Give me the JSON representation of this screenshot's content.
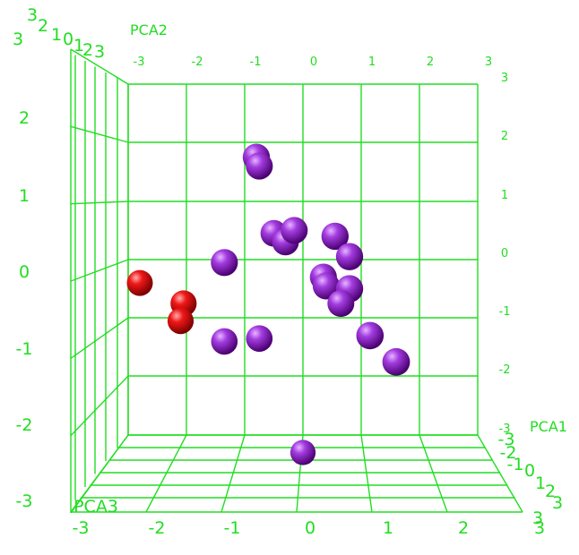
{
  "chart_data": {
    "type": "scatter",
    "title": "",
    "dimensions": 3,
    "axes": {
      "pca1": {
        "label": "PCA1",
        "range": [
          -3,
          3
        ],
        "ticks": [
          "-3",
          "-2",
          "-1",
          "0",
          "1",
          "2",
          "3"
        ]
      },
      "pca2": {
        "label": "PCA2",
        "range": [
          -3,
          3
        ],
        "ticks": [
          "-3",
          "-2",
          "-1",
          "0",
          "1",
          "2",
          "3"
        ]
      },
      "pca3": {
        "label": "PCA3",
        "range": [
          -3,
          3
        ],
        "ticks": [
          "-3",
          "-2",
          "-1",
          "0",
          "1",
          "2",
          "3"
        ]
      }
    },
    "front_scale": {
      "x_ticks": [
        "-3",
        "-2",
        "-1",
        "0",
        "1",
        "2",
        "3"
      ],
      "y_ticks": [
        "-3",
        "-2",
        "-1",
        "0",
        "1",
        "2"
      ],
      "top_left_ticks": [
        "3",
        "3",
        "2",
        "1",
        "0",
        "1",
        "2",
        "3"
      ],
      "bottom_right_ticks": [
        "-3",
        "-2",
        "-1",
        "0",
        "1",
        "2",
        "3",
        "3"
      ]
    },
    "grid": true,
    "grid_color": "#22dd22",
    "series": [
      {
        "color": "#8a0ec9",
        "points": [
          {
            "x": -0.8,
            "y": 1.75,
            "z": 0.3
          },
          {
            "x": -0.75,
            "y": 1.6,
            "z": 0.2
          },
          {
            "x": -0.5,
            "y": 0.45,
            "z": -0.2
          },
          {
            "x": -0.3,
            "y": 0.3,
            "z": -0.1
          },
          {
            "x": -0.15,
            "y": 0.5,
            "z": 0.0
          },
          {
            "x": 0.55,
            "y": 0.4,
            "z": 0.4
          },
          {
            "x": 0.8,
            "y": 0.05,
            "z": 0.4
          },
          {
            "x": 0.35,
            "y": -0.3,
            "z": 0.2
          },
          {
            "x": 0.4,
            "y": -0.45,
            "z": 0.1
          },
          {
            "x": 0.8,
            "y": -0.5,
            "z": 0.3
          },
          {
            "x": 0.65,
            "y": -0.75,
            "z": 0.0
          },
          {
            "x": 1.15,
            "y": -1.3,
            "z": 0.5
          },
          {
            "x": 1.6,
            "y": -1.75,
            "z": 0.6
          },
          {
            "x": -1.35,
            "y": -0.05,
            "z": 0.2
          },
          {
            "x": -1.35,
            "y": -1.4,
            "z": -0.3
          },
          {
            "x": -0.75,
            "y": -1.35,
            "z": -0.4
          },
          {
            "x": 0.0,
            "y": -3.3,
            "z": -1.5
          }
        ]
      },
      {
        "color": "#e80000",
        "points": [
          {
            "x": -2.8,
            "y": -0.4,
            "z": -0.8
          },
          {
            "x": -2.05,
            "y": -0.75,
            "z": -0.6
          },
          {
            "x": -2.1,
            "y": -1.05,
            "z": -0.7
          }
        ]
      }
    ]
  }
}
